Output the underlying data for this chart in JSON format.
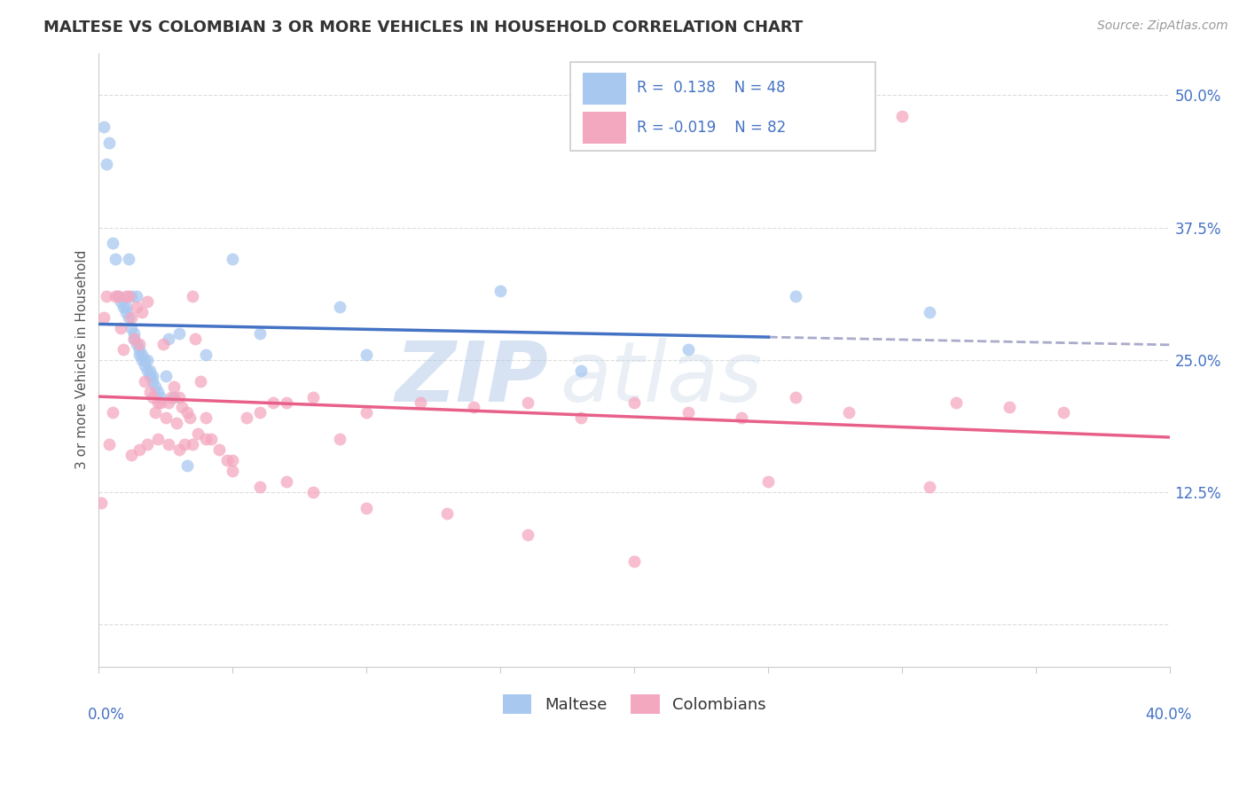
{
  "title": "MALTESE VS COLOMBIAN 3 OR MORE VEHICLES IN HOUSEHOLD CORRELATION CHART",
  "source": "Source: ZipAtlas.com",
  "ylabel": "3 or more Vehicles in Household",
  "xlim": [
    0.0,
    0.4
  ],
  "ylim": [
    -0.04,
    0.54
  ],
  "yticks": [
    0.0,
    0.125,
    0.25,
    0.375,
    0.5
  ],
  "ytick_labels": [
    "",
    "12.5%",
    "25.0%",
    "37.5%",
    "50.0%"
  ],
  "maltese_color": "#A8C8F0",
  "colombian_color": "#F4A8C0",
  "maltese_line_color": "#4472C4",
  "colombian_line_color": "#E8608A",
  "dashed_line_color": "#AAAACC",
  "watermark_zip": "ZIP",
  "watermark_atlas": "atlas",
  "maltese_x": [
    0.002,
    0.003,
    0.004,
    0.005,
    0.006,
    0.007,
    0.008,
    0.009,
    0.01,
    0.01,
    0.011,
    0.011,
    0.012,
    0.012,
    0.013,
    0.013,
    0.014,
    0.014,
    0.015,
    0.015,
    0.016,
    0.016,
    0.017,
    0.017,
    0.018,
    0.018,
    0.019,
    0.019,
    0.02,
    0.02,
    0.021,
    0.022,
    0.023,
    0.025,
    0.026,
    0.028,
    0.03,
    0.033,
    0.04,
    0.05,
    0.06,
    0.09,
    0.1,
    0.15,
    0.18,
    0.22,
    0.26,
    0.31
  ],
  "maltese_y": [
    0.47,
    0.435,
    0.455,
    0.36,
    0.345,
    0.31,
    0.305,
    0.3,
    0.3,
    0.295,
    0.345,
    0.29,
    0.28,
    0.31,
    0.275,
    0.27,
    0.265,
    0.31,
    0.255,
    0.26,
    0.25,
    0.255,
    0.245,
    0.25,
    0.24,
    0.25,
    0.235,
    0.24,
    0.23,
    0.235,
    0.225,
    0.22,
    0.215,
    0.235,
    0.27,
    0.215,
    0.275,
    0.15,
    0.255,
    0.345,
    0.275,
    0.3,
    0.255,
    0.315,
    0.24,
    0.26,
    0.31,
    0.295
  ],
  "colombian_x": [
    0.001,
    0.002,
    0.003,
    0.004,
    0.005,
    0.006,
    0.007,
    0.008,
    0.009,
    0.01,
    0.011,
    0.012,
    0.013,
    0.014,
    0.015,
    0.016,
    0.017,
    0.018,
    0.019,
    0.02,
    0.021,
    0.022,
    0.023,
    0.024,
    0.025,
    0.026,
    0.027,
    0.028,
    0.029,
    0.03,
    0.031,
    0.032,
    0.033,
    0.034,
    0.035,
    0.036,
    0.037,
    0.038,
    0.04,
    0.042,
    0.045,
    0.048,
    0.05,
    0.055,
    0.06,
    0.065,
    0.07,
    0.08,
    0.09,
    0.1,
    0.12,
    0.14,
    0.16,
    0.18,
    0.2,
    0.22,
    0.24,
    0.26,
    0.28,
    0.3,
    0.32,
    0.34,
    0.36,
    0.012,
    0.015,
    0.018,
    0.022,
    0.026,
    0.03,
    0.035,
    0.04,
    0.05,
    0.06,
    0.07,
    0.08,
    0.1,
    0.13,
    0.16,
    0.2,
    0.25,
    0.31
  ],
  "colombian_y": [
    0.115,
    0.29,
    0.31,
    0.17,
    0.2,
    0.31,
    0.31,
    0.28,
    0.26,
    0.31,
    0.31,
    0.29,
    0.27,
    0.3,
    0.265,
    0.295,
    0.23,
    0.305,
    0.22,
    0.215,
    0.2,
    0.21,
    0.21,
    0.265,
    0.195,
    0.21,
    0.215,
    0.225,
    0.19,
    0.215,
    0.205,
    0.17,
    0.2,
    0.195,
    0.31,
    0.27,
    0.18,
    0.23,
    0.195,
    0.175,
    0.165,
    0.155,
    0.145,
    0.195,
    0.2,
    0.21,
    0.21,
    0.215,
    0.175,
    0.2,
    0.21,
    0.205,
    0.21,
    0.195,
    0.21,
    0.2,
    0.195,
    0.215,
    0.2,
    0.48,
    0.21,
    0.205,
    0.2,
    0.16,
    0.165,
    0.17,
    0.175,
    0.17,
    0.165,
    0.17,
    0.175,
    0.155,
    0.13,
    0.135,
    0.125,
    0.11,
    0.105,
    0.085,
    0.06,
    0.135,
    0.13
  ]
}
